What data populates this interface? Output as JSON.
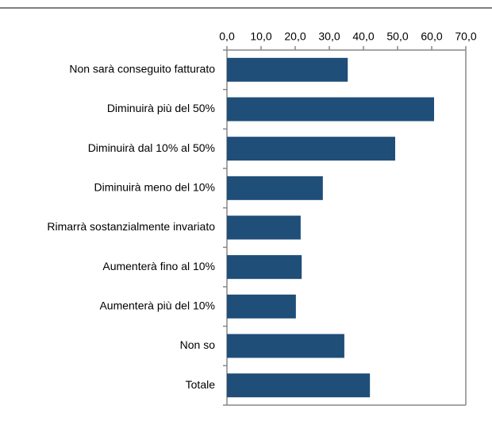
{
  "chart_data": {
    "type": "bar",
    "orientation": "horizontal",
    "categories": [
      "Non sarà conseguito fatturato",
      "Diminuirà più del 50%",
      "Diminuirà dal 10% al 50%",
      "Diminuirà meno del 10%",
      "Rimarrà sostanzialmente invariato",
      "Aumenterà fino al 10%",
      "Aumenterà più del 10%",
      "Non so",
      "Totale"
    ],
    "values": [
      35.4,
      60.7,
      49.3,
      28.1,
      21.6,
      21.9,
      20.2,
      34.4,
      41.9
    ],
    "color": "#1f4e79",
    "xlim": [
      0,
      70
    ],
    "xticks": [
      {
        "value": 0,
        "label": "0,0"
      },
      {
        "value": 10,
        "label": "10,0"
      },
      {
        "value": 20,
        "label": "20,0"
      },
      {
        "value": 30,
        "label": "30,0"
      },
      {
        "value": 40,
        "label": "40,0"
      },
      {
        "value": 50,
        "label": "50,0"
      },
      {
        "value": 60,
        "label": "60,0"
      },
      {
        "value": 70,
        "label": "70,0"
      }
    ],
    "grid": false
  }
}
